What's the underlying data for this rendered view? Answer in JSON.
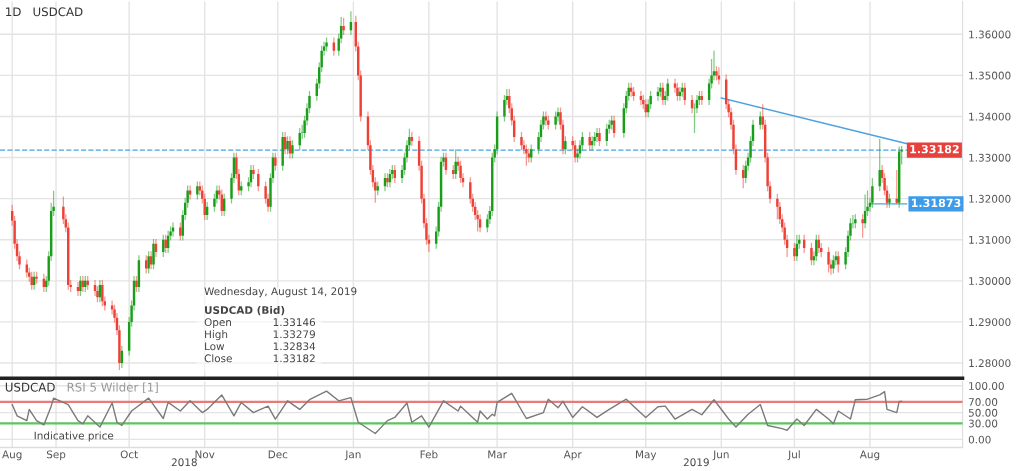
{
  "chart_data": [
    {
      "type": "candlestick",
      "title": "1D",
      "subtitle": "USDCAD",
      "x": [
        "2018-08-14",
        "2018-08-15",
        "2018-08-16",
        "2018-08-17",
        "2018-08-20",
        "2018-08-21",
        "2018-08-22",
        "2018-08-23",
        "2018-08-24",
        "2018-08-27",
        "2018-08-28",
        "2018-08-29",
        "2018-08-30",
        "2018-08-31",
        "2018-09-04",
        "2018-09-05",
        "2018-09-06",
        "2018-09-07",
        "2018-09-10",
        "2018-09-11",
        "2018-09-12",
        "2018-09-13",
        "2018-09-14",
        "2018-09-17",
        "2018-09-18",
        "2018-09-19",
        "2018-09-20",
        "2018-09-21",
        "2018-09-24",
        "2018-09-25",
        "2018-09-26",
        "2018-09-27",
        "2018-09-28",
        "2018-10-01",
        "2018-10-02",
        "2018-10-03",
        "2018-10-04",
        "2018-10-05",
        "2018-10-08",
        "2018-10-09",
        "2018-10-10",
        "2018-10-11",
        "2018-10-12",
        "2018-10-15",
        "2018-10-16",
        "2018-10-17",
        "2018-10-18",
        "2018-10-19",
        "2018-10-22",
        "2018-10-23",
        "2018-10-24",
        "2018-10-25",
        "2018-10-26",
        "2018-10-29",
        "2018-10-30",
        "2018-10-31",
        "2018-11-01",
        "2018-11-02",
        "2018-11-05",
        "2018-11-06",
        "2018-11-07",
        "2018-11-08",
        "2018-11-09",
        "2018-11-12",
        "2018-11-13",
        "2018-11-14",
        "2018-11-15",
        "2018-11-16",
        "2018-11-19",
        "2018-11-20",
        "2018-11-21",
        "2018-11-23",
        "2018-11-26",
        "2018-11-27",
        "2018-11-28",
        "2018-11-29",
        "2018-11-30",
        "2018-12-03",
        "2018-12-04",
        "2018-12-05",
        "2018-12-06",
        "2018-12-07",
        "2018-12-10",
        "2018-12-11",
        "2018-12-12",
        "2018-12-13",
        "2018-12-14",
        "2018-12-17",
        "2018-12-18",
        "2018-12-19",
        "2018-12-20",
        "2018-12-21",
        "2018-12-24",
        "2018-12-26",
        "2018-12-27",
        "2018-12-28",
        "2018-12-31",
        "2019-01-02",
        "2019-01-03",
        "2019-01-04",
        "2019-01-07",
        "2019-01-08",
        "2019-01-09",
        "2019-01-10",
        "2019-01-11",
        "2019-01-14",
        "2019-01-15",
        "2019-01-16",
        "2019-01-17",
        "2019-01-18",
        "2019-01-21",
        "2019-01-22",
        "2019-01-23",
        "2019-01-24",
        "2019-01-25",
        "2019-01-28",
        "2019-01-29",
        "2019-01-30",
        "2019-01-31",
        "2019-02-01",
        "2019-02-04",
        "2019-02-05",
        "2019-02-06",
        "2019-02-07",
        "2019-02-08",
        "2019-02-11",
        "2019-02-12",
        "2019-02-13",
        "2019-02-14",
        "2019-02-15",
        "2019-02-18",
        "2019-02-19",
        "2019-02-20",
        "2019-02-21",
        "2019-02-22",
        "2019-02-25",
        "2019-02-26",
        "2019-02-27",
        "2019-02-28",
        "2019-03-01",
        "2019-03-04",
        "2019-03-05",
        "2019-03-06",
        "2019-03-07",
        "2019-03-08",
        "2019-03-11",
        "2019-03-12",
        "2019-03-13",
        "2019-03-14",
        "2019-03-15",
        "2019-03-18",
        "2019-03-19",
        "2019-03-20",
        "2019-03-21",
        "2019-03-22",
        "2019-03-25",
        "2019-03-26",
        "2019-03-27",
        "2019-03-28",
        "2019-03-29",
        "2019-04-01",
        "2019-04-02",
        "2019-04-03",
        "2019-04-04",
        "2019-04-05",
        "2019-04-08",
        "2019-04-09",
        "2019-04-10",
        "2019-04-11",
        "2019-04-12",
        "2019-04-15",
        "2019-04-16",
        "2019-04-17",
        "2019-04-18",
        "2019-04-22",
        "2019-04-23",
        "2019-04-24",
        "2019-04-25",
        "2019-04-26",
        "2019-04-29",
        "2019-04-30",
        "2019-05-01",
        "2019-05-02",
        "2019-05-03",
        "2019-05-06",
        "2019-05-07",
        "2019-05-08",
        "2019-05-09",
        "2019-05-10",
        "2019-05-13",
        "2019-05-14",
        "2019-05-15",
        "2019-05-16",
        "2019-05-17",
        "2019-05-20",
        "2019-05-21",
        "2019-05-22",
        "2019-05-23",
        "2019-05-24",
        "2019-05-27",
        "2019-05-28",
        "2019-05-29",
        "2019-05-30",
        "2019-05-31",
        "2019-06-03",
        "2019-06-04",
        "2019-06-05",
        "2019-06-06",
        "2019-06-07",
        "2019-06-10",
        "2019-06-11",
        "2019-06-12",
        "2019-06-13",
        "2019-06-14",
        "2019-06-17",
        "2019-06-18",
        "2019-06-19",
        "2019-06-20",
        "2019-06-21",
        "2019-06-24",
        "2019-06-25",
        "2019-06-26",
        "2019-06-27",
        "2019-06-28",
        "2019-07-01",
        "2019-07-02",
        "2019-07-03",
        "2019-07-05",
        "2019-07-08",
        "2019-07-09",
        "2019-07-10",
        "2019-07-11",
        "2019-07-12",
        "2019-07-15",
        "2019-07-16",
        "2019-07-17",
        "2019-07-18",
        "2019-07-19",
        "2019-07-22",
        "2019-07-23",
        "2019-07-24",
        "2019-07-25",
        "2019-07-26",
        "2019-07-29",
        "2019-07-30",
        "2019-07-31",
        "2019-08-01",
        "2019-08-02",
        "2019-08-05",
        "2019-08-06",
        "2019-08-07",
        "2019-08-08",
        "2019-08-09",
        "2019-08-12",
        "2019-08-13",
        "2019-08-14"
      ],
      "ohlc": [
        [
          1.317,
          1.3185,
          1.3134,
          1.3146
        ],
        [
          1.3146,
          1.3158,
          1.3078,
          1.309
        ],
        [
          1.309,
          1.3102,
          1.3048,
          1.306
        ],
        [
          1.306,
          1.3072,
          1.3028,
          1.304
        ],
        [
          1.304,
          1.3052,
          1.3008,
          1.302
        ],
        [
          1.302,
          1.3032,
          1.2998,
          1.301
        ],
        [
          1.301,
          1.3022,
          1.2978,
          1.299
        ],
        [
          1.299,
          1.3022,
          1.2978,
          1.301
        ],
        [
          1.301,
          1.3022,
          1.2993,
          1.3005
        ],
        [
          1.3005,
          1.3017,
          1.2973,
          1.2985
        ],
        [
          1.2985,
          1.3012,
          1.2973,
          1.3
        ],
        [
          1.3,
          1.3072,
          1.2988,
          1.306
        ],
        [
          1.306,
          1.319,
          1.3048,
          1.317
        ],
        [
          1.317,
          1.3219,
          1.3158,
          1.318
        ],
        [
          1.318,
          1.3205,
          1.3138,
          1.315
        ],
        [
          1.315,
          1.3162,
          1.3118,
          1.313
        ],
        [
          1.313,
          1.3142,
          1.2978,
          1.299
        ],
        [
          1.299,
          1.3002,
          1.2973,
          1.2985
        ],
        [
          1.2985,
          1.2997,
          1.2963,
          1.2975
        ],
        [
          1.2975,
          1.3012,
          1.2963,
          1.3
        ],
        [
          1.3,
          1.3012,
          1.2973,
          1.2985
        ],
        [
          1.2985,
          1.3012,
          1.2973,
          1.3
        ],
        [
          1.3,
          1.3012,
          1.2978,
          1.299
        ],
        [
          1.299,
          1.3002,
          1.2963,
          1.2975
        ],
        [
          1.2975,
          1.2987,
          1.2948,
          1.296
        ],
        [
          1.296,
          1.3002,
          1.2948,
          1.299
        ],
        [
          1.299,
          1.3002,
          1.2938,
          1.295
        ],
        [
          1.295,
          1.2962,
          1.2928,
          1.294
        ],
        [
          1.294,
          1.2952,
          1.2918,
          1.293
        ],
        [
          1.293,
          1.2942,
          1.2898,
          1.291
        ],
        [
          1.291,
          1.2922,
          1.2868,
          1.288
        ],
        [
          1.288,
          1.2892,
          1.2783,
          1.28
        ],
        [
          1.28,
          1.2842,
          1.2788,
          1.283
        ],
        [
          1.283,
          1.2912,
          1.2818,
          1.29
        ],
        [
          1.29,
          1.2952,
          1.2888,
          1.294
        ],
        [
          1.294,
          1.3012,
          1.2928,
          1.3
        ],
        [
          1.3,
          1.3012,
          1.2973,
          1.2985
        ],
        [
          1.2985,
          1.3062,
          1.2973,
          1.305
        ],
        [
          1.305,
          1.3062,
          1.3018,
          1.303
        ],
        [
          1.303,
          1.3072,
          1.3018,
          1.306
        ],
        [
          1.306,
          1.3072,
          1.3028,
          1.304
        ],
        [
          1.304,
          1.3102,
          1.3028,
          1.309
        ],
        [
          1.309,
          1.3102,
          1.3058,
          1.307
        ],
        [
          1.307,
          1.3112,
          1.3058,
          1.31
        ],
        [
          1.31,
          1.3112,
          1.3068,
          1.308
        ],
        [
          1.308,
          1.3122,
          1.3068,
          1.311
        ],
        [
          1.311,
          1.3132,
          1.3098,
          1.312
        ],
        [
          1.312,
          1.3142,
          1.3108,
          1.313
        ],
        [
          1.313,
          1.3142,
          1.3098,
          1.311
        ],
        [
          1.311,
          1.3172,
          1.3098,
          1.316
        ],
        [
          1.316,
          1.3202,
          1.3148,
          1.319
        ],
        [
          1.319,
          1.3232,
          1.3178,
          1.322
        ],
        [
          1.322,
          1.3232,
          1.3198,
          1.321
        ],
        [
          1.321,
          1.3242,
          1.3198,
          1.323
        ],
        [
          1.323,
          1.3242,
          1.3208,
          1.322
        ],
        [
          1.322,
          1.3232,
          1.3188,
          1.32
        ],
        [
          1.32,
          1.3212,
          1.3148,
          1.316
        ],
        [
          1.316,
          1.3192,
          1.3148,
          1.318
        ],
        [
          1.318,
          1.3212,
          1.3168,
          1.32
        ],
        [
          1.32,
          1.3232,
          1.3188,
          1.322
        ],
        [
          1.322,
          1.3232,
          1.3198,
          1.321
        ],
        [
          1.321,
          1.3222,
          1.3158,
          1.317
        ],
        [
          1.317,
          1.3212,
          1.3158,
          1.32
        ],
        [
          1.32,
          1.3262,
          1.3188,
          1.325
        ],
        [
          1.325,
          1.3312,
          1.3238,
          1.33
        ],
        [
          1.33,
          1.3312,
          1.3248,
          1.326
        ],
        [
          1.326,
          1.3272,
          1.3208,
          1.322
        ],
        [
          1.322,
          1.3242,
          1.3208,
          1.323
        ],
        [
          1.323,
          1.3252,
          1.3218,
          1.324
        ],
        [
          1.324,
          1.3282,
          1.3228,
          1.327
        ],
        [
          1.327,
          1.3282,
          1.3248,
          1.326
        ],
        [
          1.326,
          1.3272,
          1.3218,
          1.323
        ],
        [
          1.323,
          1.3242,
          1.3188,
          1.32
        ],
        [
          1.32,
          1.3212,
          1.3168,
          1.318
        ],
        [
          1.318,
          1.3262,
          1.3168,
          1.325
        ],
        [
          1.325,
          1.3312,
          1.3238,
          1.33
        ],
        [
          1.33,
          1.3312,
          1.3268,
          1.328
        ],
        [
          1.328,
          1.3362,
          1.3268,
          1.335
        ],
        [
          1.335,
          1.3362,
          1.3308,
          1.332
        ],
        [
          1.332,
          1.3352,
          1.3308,
          1.334
        ],
        [
          1.334,
          1.3352,
          1.3298,
          1.331
        ],
        [
          1.331,
          1.3342,
          1.3298,
          1.333
        ],
        [
          1.333,
          1.3372,
          1.3318,
          1.336
        ],
        [
          1.336,
          1.338,
          1.3345,
          1.336
        ],
        [
          1.336,
          1.3402,
          1.3348,
          1.339
        ],
        [
          1.339,
          1.3432,
          1.3378,
          1.342
        ],
        [
          1.342,
          1.3462,
          1.3408,
          1.345
        ],
        [
          1.345,
          1.3492,
          1.3438,
          1.348
        ],
        [
          1.348,
          1.3532,
          1.3468,
          1.352
        ],
        [
          1.352,
          1.3572,
          1.3508,
          1.356
        ],
        [
          1.356,
          1.3582,
          1.3548,
          1.357
        ],
        [
          1.357,
          1.3592,
          1.3558,
          1.358
        ],
        [
          1.358,
          1.3592,
          1.3548,
          1.356
        ],
        [
          1.356,
          1.3602,
          1.3548,
          1.359
        ],
        [
          1.359,
          1.3642,
          1.3578,
          1.362
        ],
        [
          1.362,
          1.364,
          1.3598,
          1.361
        ],
        [
          1.361,
          1.3656,
          1.3598,
          1.363
        ],
        [
          1.363,
          1.3645,
          1.3558,
          1.357
        ],
        [
          1.357,
          1.3582,
          1.3488,
          1.35
        ],
        [
          1.35,
          1.3512,
          1.3388,
          1.34
        ],
        [
          1.34,
          1.3412,
          1.3318,
          1.333
        ],
        [
          1.333,
          1.3342,
          1.3258,
          1.327
        ],
        [
          1.327,
          1.3282,
          1.3228,
          1.324
        ],
        [
          1.324,
          1.3252,
          1.319,
          1.322
        ],
        [
          1.322,
          1.3242,
          1.3208,
          1.323
        ],
        [
          1.323,
          1.3262,
          1.3218,
          1.325
        ],
        [
          1.325,
          1.3262,
          1.3228,
          1.324
        ],
        [
          1.324,
          1.3272,
          1.3228,
          1.326
        ],
        [
          1.326,
          1.3282,
          1.3248,
          1.327
        ],
        [
          1.327,
          1.3282,
          1.3238,
          1.325
        ],
        [
          1.325,
          1.3282,
          1.3238,
          1.327
        ],
        [
          1.327,
          1.3312,
          1.3258,
          1.33
        ],
        [
          1.33,
          1.3342,
          1.3288,
          1.333
        ],
        [
          1.333,
          1.337,
          1.3318,
          1.335
        ],
        [
          1.335,
          1.3362,
          1.3328,
          1.334
        ],
        [
          1.334,
          1.3352,
          1.3268,
          1.328
        ],
        [
          1.328,
          1.3292,
          1.3188,
          1.32
        ],
        [
          1.32,
          1.3212,
          1.3128,
          1.314
        ],
        [
          1.314,
          1.3152,
          1.3088,
          1.31
        ],
        [
          1.31,
          1.3112,
          1.307,
          1.309
        ],
        [
          1.309,
          1.3132,
          1.3078,
          1.312
        ],
        [
          1.312,
          1.3192,
          1.3108,
          1.318
        ],
        [
          1.318,
          1.3302,
          1.3168,
          1.329
        ],
        [
          1.329,
          1.3312,
          1.3278,
          1.33
        ],
        [
          1.33,
          1.3312,
          1.3258,
          1.327
        ],
        [
          1.327,
          1.3282,
          1.3248,
          1.326
        ],
        [
          1.326,
          1.332,
          1.3248,
          1.329
        ],
        [
          1.329,
          1.3302,
          1.3268,
          1.328
        ],
        [
          1.328,
          1.3292,
          1.3238,
          1.325
        ],
        [
          1.325,
          1.3262,
          1.3228,
          1.324
        ],
        [
          1.324,
          1.3252,
          1.3188,
          1.32
        ],
        [
          1.32,
          1.3212,
          1.3168,
          1.318
        ],
        [
          1.318,
          1.3192,
          1.3148,
          1.316
        ],
        [
          1.316,
          1.3172,
          1.312,
          1.315
        ],
        [
          1.315,
          1.3162,
          1.3118,
          1.313
        ],
        [
          1.313,
          1.3162,
          1.3118,
          1.315
        ],
        [
          1.315,
          1.3182,
          1.3138,
          1.317
        ],
        [
          1.317,
          1.3312,
          1.3158,
          1.33
        ],
        [
          1.33,
          1.3332,
          1.3288,
          1.332
        ],
        [
          1.332,
          1.3412,
          1.3308,
          1.34
        ],
        [
          1.34,
          1.3452,
          1.3388,
          1.344
        ],
        [
          1.344,
          1.3467,
          1.3428,
          1.345
        ],
        [
          1.345,
          1.3467,
          1.3408,
          1.342
        ],
        [
          1.342,
          1.3432,
          1.3378,
          1.339
        ],
        [
          1.339,
          1.3402,
          1.3338,
          1.335
        ],
        [
          1.335,
          1.3362,
          1.3318,
          1.333
        ],
        [
          1.333,
          1.3342,
          1.3308,
          1.332
        ],
        [
          1.332,
          1.3332,
          1.328,
          1.331
        ],
        [
          1.331,
          1.3322,
          1.3288,
          1.33
        ],
        [
          1.33,
          1.3332,
          1.3288,
          1.332
        ],
        [
          1.332,
          1.3362,
          1.3308,
          1.335
        ],
        [
          1.335,
          1.3392,
          1.3338,
          1.338
        ],
        [
          1.338,
          1.3412,
          1.3368,
          1.34
        ],
        [
          1.34,
          1.3412,
          1.3378,
          1.339
        ],
        [
          1.339,
          1.3402,
          1.3368,
          1.338
        ],
        [
          1.338,
          1.3412,
          1.3368,
          1.34
        ],
        [
          1.34,
          1.3422,
          1.3388,
          1.341
        ],
        [
          1.341,
          1.3422,
          1.3368,
          1.338
        ],
        [
          1.338,
          1.3392,
          1.3308,
          1.332
        ],
        [
          1.332,
          1.3352,
          1.3308,
          1.334
        ],
        [
          1.334,
          1.3352,
          1.3318,
          1.333
        ],
        [
          1.333,
          1.3342,
          1.3288,
          1.33
        ],
        [
          1.33,
          1.3322,
          1.3288,
          1.331
        ],
        [
          1.331,
          1.3342,
          1.3298,
          1.333
        ],
        [
          1.333,
          1.3362,
          1.3318,
          1.335
        ],
        [
          1.335,
          1.3362,
          1.3318,
          1.333
        ],
        [
          1.333,
          1.3352,
          1.3318,
          1.334
        ],
        [
          1.334,
          1.3362,
          1.3328,
          1.335
        ],
        [
          1.335,
          1.3372,
          1.3338,
          1.336
        ],
        [
          1.336,
          1.3372,
          1.3328,
          1.334
        ],
        [
          1.334,
          1.3382,
          1.3328,
          1.337
        ],
        [
          1.337,
          1.3392,
          1.3358,
          1.338
        ],
        [
          1.338,
          1.3402,
          1.3368,
          1.339
        ],
        [
          1.339,
          1.3402,
          1.3348,
          1.336
        ],
        [
          1.336,
          1.3432,
          1.3348,
          1.342
        ],
        [
          1.342,
          1.3462,
          1.3408,
          1.345
        ],
        [
          1.345,
          1.3482,
          1.3438,
          1.347
        ],
        [
          1.347,
          1.3482,
          1.3448,
          1.346
        ],
        [
          1.346,
          1.3472,
          1.3438,
          1.345
        ],
        [
          1.345,
          1.3462,
          1.3428,
          1.344
        ],
        [
          1.344,
          1.3452,
          1.3418,
          1.343
        ],
        [
          1.343,
          1.3442,
          1.3398,
          1.341
        ],
        [
          1.341,
          1.3442,
          1.3398,
          1.343
        ],
        [
          1.343,
          1.3462,
          1.3418,
          1.345
        ],
        [
          1.345,
          1.3472,
          1.3438,
          1.346
        ],
        [
          1.346,
          1.3482,
          1.3448,
          1.347
        ],
        [
          1.347,
          1.3482,
          1.3428,
          1.344
        ],
        [
          1.344,
          1.3462,
          1.3428,
          1.345
        ],
        [
          1.345,
          1.3492,
          1.3438,
          1.348
        ],
        [
          1.348,
          1.3492,
          1.3458,
          1.347
        ],
        [
          1.347,
          1.3482,
          1.3438,
          1.345
        ],
        [
          1.345,
          1.3472,
          1.3438,
          1.346
        ],
        [
          1.346,
          1.3482,
          1.3448,
          1.347
        ],
        [
          1.347,
          1.3482,
          1.3428,
          1.344
        ],
        [
          1.344,
          1.3452,
          1.3408,
          1.342
        ],
        [
          1.342,
          1.3432,
          1.336,
          1.342
        ],
        [
          1.342,
          1.3452,
          1.3408,
          1.344
        ],
        [
          1.344,
          1.3462,
          1.3428,
          1.345
        ],
        [
          1.345,
          1.3462,
          1.3428,
          1.344
        ],
        [
          1.344,
          1.3492,
          1.3428,
          1.348
        ],
        [
          1.348,
          1.354,
          1.3468,
          1.35
        ],
        [
          1.35,
          1.356,
          1.3488,
          1.351
        ],
        [
          1.351,
          1.3522,
          1.3488,
          1.35
        ],
        [
          1.35,
          1.352,
          1.3478,
          1.349
        ],
        [
          1.349,
          1.3502,
          1.3418,
          1.343
        ],
        [
          1.343,
          1.3442,
          1.3398,
          1.341
        ],
        [
          1.341,
          1.3422,
          1.3368,
          1.338
        ],
        [
          1.338,
          1.3392,
          1.3308,
          1.332
        ],
        [
          1.332,
          1.3332,
          1.3258,
          1.327
        ],
        [
          1.327,
          1.3282,
          1.3225,
          1.325
        ],
        [
          1.325,
          1.3292,
          1.3238,
          1.328
        ],
        [
          1.328,
          1.3312,
          1.3268,
          1.33
        ],
        [
          1.33,
          1.3352,
          1.3288,
          1.334
        ],
        [
          1.334,
          1.3392,
          1.3328,
          1.338
        ],
        [
          1.338,
          1.3412,
          1.3368,
          1.34
        ],
        [
          1.34,
          1.343,
          1.3368,
          1.338
        ],
        [
          1.338,
          1.3392,
          1.3288,
          1.33
        ],
        [
          1.33,
          1.3312,
          1.3218,
          1.323
        ],
        [
          1.323,
          1.3242,
          1.3188,
          1.32
        ],
        [
          1.32,
          1.3212,
          1.315,
          1.318
        ],
        [
          1.318,
          1.3192,
          1.3138,
          1.315
        ],
        [
          1.315,
          1.3162,
          1.3118,
          1.313
        ],
        [
          1.313,
          1.3142,
          1.3088,
          1.31
        ],
        [
          1.31,
          1.3112,
          1.3058,
          1.308
        ],
        [
          1.308,
          1.3092,
          1.3048,
          1.306
        ],
        [
          1.306,
          1.3112,
          1.3048,
          1.309
        ],
        [
          1.309,
          1.3112,
          1.3078,
          1.31
        ],
        [
          1.31,
          1.3112,
          1.3068,
          1.308
        ],
        [
          1.308,
          1.3092,
          1.3038,
          1.305
        ],
        [
          1.305,
          1.3072,
          1.3038,
          1.306
        ],
        [
          1.306,
          1.3112,
          1.3048,
          1.31
        ],
        [
          1.31,
          1.3112,
          1.3068,
          1.308
        ],
        [
          1.308,
          1.3092,
          1.3058,
          1.307
        ],
        [
          1.307,
          1.3082,
          1.302,
          1.304
        ],
        [
          1.304,
          1.3052,
          1.3015,
          1.303
        ],
        [
          1.303,
          1.3062,
          1.3018,
          1.305
        ],
        [
          1.305,
          1.3072,
          1.3038,
          1.306
        ],
        [
          1.306,
          1.3072,
          1.302,
          1.304
        ],
        [
          1.304,
          1.3082,
          1.3028,
          1.307
        ],
        [
          1.307,
          1.3122,
          1.3058,
          1.311
        ],
        [
          1.311,
          1.3152,
          1.3098,
          1.314
        ],
        [
          1.314,
          1.316,
          1.3128,
          1.314
        ],
        [
          1.314,
          1.3162,
          1.3128,
          1.315
        ],
        [
          1.315,
          1.3162,
          1.3105,
          1.314
        ],
        [
          1.314,
          1.321,
          1.3128,
          1.317
        ],
        [
          1.317,
          1.322,
          1.3158,
          1.318
        ],
        [
          1.318,
          1.3202,
          1.3168,
          1.319
        ],
        [
          1.319,
          1.325,
          1.3178,
          1.323
        ],
        [
          1.323,
          1.3345,
          1.3218,
          1.327
        ],
        [
          1.327,
          1.3282,
          1.3238,
          1.325
        ],
        [
          1.325,
          1.3262,
          1.3208,
          1.322
        ],
        [
          1.322,
          1.3232,
          1.3178,
          1.319
        ],
        [
          1.319,
          1.3212,
          1.3178,
          1.32
        ],
        [
          1.32,
          1.327,
          1.3187,
          1.319
        ],
        [
          1.319,
          1.3327,
          1.3178,
          1.33146
        ],
        [
          1.33146,
          1.33279,
          1.32834,
          1.33182
        ]
      ],
      "series": [
        {
          "type": "line",
          "color": "#4aa3e0",
          "x": [
            "2019-06-01",
            "2019-08-16"
          ],
          "values": [
            1.3445,
            1.3334
          ]
        },
        {
          "type": "line",
          "color": "#4aa3e0",
          "x": [
            "2019-08-01",
            "2019-08-16"
          ],
          "values": [
            1.31873,
            1.31873
          ]
        }
      ],
      "xlim": [
        "2018-08-09",
        "2019-09-08"
      ],
      "ylim": [
        1.2763,
        1.368
      ],
      "xticks": [
        {
          "value": "2018-08-14",
          "label": null
        },
        {
          "value": "2018-09-01",
          "label": null
        },
        {
          "value": "2018-10-01",
          "label": null
        },
        {
          "value": "2018-11-01",
          "label": null
        },
        {
          "value": "2018-12-01",
          "label": null
        },
        {
          "value": "2019-01-01",
          "label": null
        },
        {
          "value": "2019-02-01",
          "label": null
        },
        {
          "value": "2019-03-01",
          "label": null
        },
        {
          "value": "2019-04-01",
          "label": null
        },
        {
          "value": "2019-05-01",
          "label": null
        },
        {
          "value": "2019-06-01",
          "label": null
        },
        {
          "value": "2019-07-01",
          "label": null
        },
        {
          "value": "2019-08-01",
          "label": null
        }
      ],
      "yticks": [
        {
          "value": 1.28,
          "label": "1.28000"
        },
        {
          "value": 1.29,
          "label": "1.29000"
        },
        {
          "value": 1.3,
          "label": "1.30000"
        },
        {
          "value": 1.31,
          "label": "1.31000"
        },
        {
          "value": 1.32,
          "label": "1.32000"
        },
        {
          "value": 1.33,
          "label": "1.33000"
        },
        {
          "value": 1.34,
          "label": "1.34000"
        },
        {
          "value": 1.35,
          "label": "1.35000"
        },
        {
          "value": 1.36,
          "label": "1.36000"
        }
      ],
      "tick_labels": "y",
      "grid": true,
      "ref_lines": [
        {
          "axis": "y",
          "value": 1.33182,
          "label": "1.33182",
          "color": "#4aa3e0",
          "line_style": "dashed"
        }
      ],
      "annotations": [
        "Wednesday, August 14, 2019",
        "USDCAD (Bid)",
        "Open",
        "1.33146",
        "High",
        "1.33279",
        "Low",
        "1.32834",
        "Close",
        "1.33182",
        {
          "text": "1.31873",
          "x": "2019-08-16",
          "y": 1.31873
        }
      ]
    },
    {
      "type": "line",
      "title": "USDCAD",
      "subtitle": "RSI 5 Wilder [1]",
      "series": [
        {
          "color": "#7a7a7a",
          "x": [
            "2018-08-14",
            "2018-08-16",
            "2018-08-20",
            "2018-08-21",
            "2018-08-24",
            "2018-08-27",
            "2018-08-30",
            "2018-08-31",
            "2018-09-06",
            "2018-09-10",
            "2018-09-12",
            "2018-09-14",
            "2018-09-19",
            "2018-09-24",
            "2018-09-26",
            "2018-09-28",
            "2018-10-02",
            "2018-10-09",
            "2018-10-15",
            "2018-10-17",
            "2018-10-22",
            "2018-10-26",
            "2018-10-31",
            "2018-11-02",
            "2018-11-08",
            "2018-11-13",
            "2018-11-16",
            "2018-11-21",
            "2018-11-27",
            "2018-11-30",
            "2018-12-05",
            "2018-12-10",
            "2018-12-14",
            "2018-12-21",
            "2018-12-26",
            "2018-12-31",
            "2019-01-03",
            "2019-01-10",
            "2019-01-15",
            "2019-01-18",
            "2019-01-23",
            "2019-01-25",
            "2019-01-29",
            "2019-02-01",
            "2019-02-07",
            "2019-02-13",
            "2019-02-14",
            "2019-02-21",
            "2019-02-22",
            "2019-02-25",
            "2019-02-27",
            "2019-02-28",
            "2019-03-01",
            "2019-03-07",
            "2019-03-13",
            "2019-03-20",
            "2019-03-22",
            "2019-03-26",
            "2019-03-28",
            "2019-04-01",
            "2019-04-05",
            "2019-04-11",
            "2019-04-16",
            "2019-04-23",
            "2019-04-26",
            "2019-05-01",
            "2019-05-06",
            "2019-05-09",
            "2019-05-13",
            "2019-05-20",
            "2019-05-24",
            "2019-05-29",
            "2019-06-04",
            "2019-06-07",
            "2019-06-12",
            "2019-06-17",
            "2019-06-20",
            "2019-06-26",
            "2019-06-28",
            "2019-07-02",
            "2019-07-05",
            "2019-07-10",
            "2019-07-15",
            "2019-07-17",
            "2019-07-19",
            "2019-07-24",
            "2019-07-26",
            "2019-07-31",
            "2019-08-05",
            "2019-08-07",
            "2019-08-08",
            "2019-08-12",
            "2019-08-13",
            "2019-08-14"
          ],
          "values": [
            65,
            44,
            35,
            56,
            35,
            27,
            62,
            77,
            65,
            35,
            29,
            44,
            23,
            68,
            32,
            26,
            53,
            77,
            39,
            69,
            53,
            72,
            50,
            56,
            83,
            44,
            69,
            50,
            62,
            38,
            72,
            56,
            74,
            90,
            72,
            78,
            32,
            11,
            35,
            41,
            68,
            32,
            44,
            23,
            72,
            53,
            62,
            32,
            53,
            38,
            47,
            44,
            69,
            86,
            39,
            50,
            75,
            59,
            71,
            41,
            61,
            41,
            56,
            75,
            62,
            41,
            61,
            62,
            38,
            56,
            46,
            74,
            38,
            23,
            47,
            65,
            26,
            20,
            17,
            38,
            26,
            56,
            38,
            29,
            53,
            38,
            74,
            75,
            83,
            89,
            56,
            50,
            71,
            71
          ]
        }
      ],
      "xlim": [
        "2018-08-09",
        "2019-09-08"
      ],
      "ylim": [
        -15,
        108
      ],
      "xticks": [
        {
          "value": "2018-08-14",
          "label": "Aug"
        },
        {
          "value": "2018-09-01",
          "label": "Sep"
        },
        {
          "value": "2018-10-01",
          "label": "Oct"
        },
        {
          "value": "2018-11-01",
          "label": "Nov"
        },
        {
          "value": "2018-12-01",
          "label": "Dec"
        },
        {
          "value": "2019-01-01",
          "label": "Jan"
        },
        {
          "value": "2019-02-01",
          "label": "Feb"
        },
        {
          "value": "2019-03-01",
          "label": "Mar"
        },
        {
          "value": "2019-04-01",
          "label": "Apr"
        },
        {
          "value": "2019-05-01",
          "label": "May"
        },
        {
          "value": "2019-06-01",
          "label": "Jun"
        },
        {
          "value": "2019-07-01",
          "label": "Jul"
        },
        {
          "value": "2019-08-01",
          "label": "Aug"
        }
      ],
      "yticks": [
        {
          "value": 0,
          "label": "0.00"
        },
        {
          "value": 30,
          "label": "30.00"
        },
        {
          "value": 50,
          "label": "50.00"
        },
        {
          "value": 70,
          "label": "70.00"
        },
        {
          "value": 100,
          "label": "100.00"
        }
      ],
      "grid": true,
      "ref_lines": [
        {
          "axis": "y",
          "value": 70,
          "color": "#e87a7a"
        },
        {
          "axis": "y",
          "value": 30,
          "color": "#5cc65c"
        }
      ],
      "annotations": [
        "Indicative price",
        "2018",
        "2019"
      ]
    }
  ]
}
